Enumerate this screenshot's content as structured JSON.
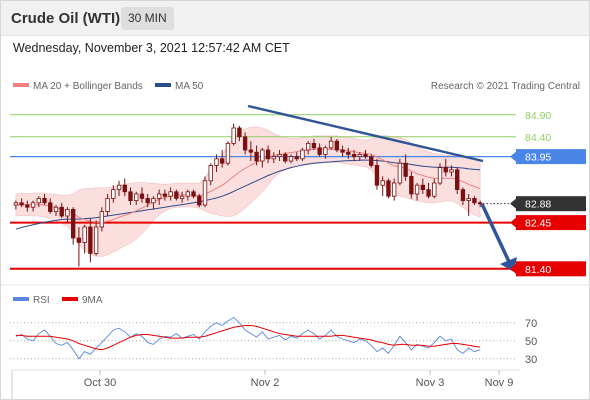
{
  "header": {
    "title": "Crude Oil (WTI)",
    "timeframe": "30 MIN",
    "datetime": "Wednesday, November 3, 2021 12:57:42 AM CET"
  },
  "legend": {
    "ma20_label": "MA 20 + Bollinger Bands",
    "ma50_label": "MA 50",
    "credit": "Research © 2021 Trading Central",
    "rsi_label": "RSI",
    "rsi_ma_label": "9MA"
  },
  "colors": {
    "ma20": "#f08080",
    "ma50": "#2c4a8c",
    "bollinger_fill": "#fbdcdc",
    "resistance": "#8fcf62",
    "pivot": "#4a86e8",
    "support": "#e60000",
    "trendline": "#2f5597",
    "candle": "#7a1010",
    "rsi": "#5b87e0",
    "rsi_ma": "#e60000"
  },
  "chart_data": [
    {
      "type": "candlestick",
      "title": "Crude Oil (WTI)",
      "x_tick_labels": [
        "Oct 30",
        "Nov 2",
        "Nov 3",
        "Nov 9"
      ],
      "ylim": [
        81.1,
        85.35
      ],
      "price_levels": [
        {
          "label": "84.90",
          "value": 84.9,
          "kind": "resistance"
        },
        {
          "label": "84.40",
          "value": 84.4,
          "kind": "resistance"
        },
        {
          "label": "83.95",
          "value": 83.95,
          "kind": "pivot"
        },
        {
          "label": "82.88",
          "value": 82.88,
          "kind": "last"
        },
        {
          "label": "82.45",
          "value": 82.45,
          "kind": "support"
        },
        {
          "label": "81.40",
          "value": 81.4,
          "kind": "support"
        }
      ],
      "candles": [
        [
          82.85,
          82.95,
          82.75,
          82.9
        ],
        [
          82.9,
          83.0,
          82.8,
          82.85
        ],
        [
          82.85,
          82.95,
          82.7,
          82.8
        ],
        [
          82.8,
          82.95,
          82.7,
          82.9
        ],
        [
          82.9,
          83.05,
          82.8,
          83.0
        ],
        [
          83.0,
          83.1,
          82.85,
          82.9
        ],
        [
          82.9,
          83.0,
          82.65,
          82.7
        ],
        [
          82.7,
          82.85,
          82.6,
          82.8
        ],
        [
          82.8,
          82.9,
          82.55,
          82.6
        ],
        [
          82.6,
          82.8,
          82.45,
          82.75
        ],
        [
          82.75,
          82.8,
          81.95,
          82.1
        ],
        [
          82.1,
          82.35,
          81.45,
          82.0
        ],
        [
          82.0,
          82.4,
          81.75,
          82.35
        ],
        [
          82.35,
          82.55,
          81.55,
          81.75
        ],
        [
          81.75,
          82.5,
          81.7,
          82.35
        ],
        [
          82.35,
          82.8,
          82.25,
          82.7
        ],
        [
          82.7,
          83.1,
          82.6,
          83.0
        ],
        [
          83.0,
          83.3,
          82.9,
          83.2
        ],
        [
          83.2,
          83.4,
          83.05,
          83.3
        ],
        [
          83.3,
          83.45,
          83.05,
          83.15
        ],
        [
          83.15,
          83.25,
          82.85,
          82.95
        ],
        [
          82.95,
          83.15,
          82.85,
          83.1
        ],
        [
          83.1,
          83.25,
          82.9,
          83.0
        ],
        [
          83.0,
          83.1,
          82.8,
          82.9
        ],
        [
          82.9,
          83.05,
          82.75,
          83.0
        ],
        [
          83.0,
          83.2,
          82.85,
          83.1
        ],
        [
          83.1,
          83.2,
          82.95,
          83.05
        ],
        [
          83.05,
          83.25,
          82.95,
          83.15
        ],
        [
          83.15,
          83.2,
          82.95,
          83.0
        ],
        [
          83.0,
          83.15,
          82.9,
          83.05
        ],
        [
          83.05,
          83.2,
          82.95,
          83.15
        ],
        [
          83.15,
          83.2,
          83.0,
          83.05
        ],
        [
          83.05,
          83.1,
          82.8,
          82.85
        ],
        [
          82.85,
          83.5,
          82.8,
          83.4
        ],
        [
          83.4,
          83.8,
          83.3,
          83.75
        ],
        [
          83.75,
          84.0,
          83.6,
          83.9
        ],
        [
          83.9,
          84.1,
          83.7,
          83.8
        ],
        [
          83.8,
          84.3,
          83.75,
          84.25
        ],
        [
          84.25,
          84.7,
          84.2,
          84.6
        ],
        [
          84.6,
          84.65,
          84.3,
          84.4
        ],
        [
          84.4,
          84.5,
          84.0,
          84.1
        ],
        [
          84.1,
          84.3,
          83.85,
          84.05
        ],
        [
          84.05,
          84.2,
          83.75,
          83.85
        ],
        [
          83.85,
          84.15,
          83.7,
          84.1
        ],
        [
          84.1,
          84.2,
          83.8,
          83.9
        ],
        [
          83.9,
          84.05,
          83.8,
          83.95
        ],
        [
          83.95,
          84.1,
          83.85,
          84.0
        ],
        [
          84.0,
          84.05,
          83.8,
          83.85
        ],
        [
          83.85,
          84.0,
          83.8,
          83.95
        ],
        [
          83.95,
          84.05,
          83.85,
          83.9
        ],
        [
          83.9,
          84.15,
          83.85,
          84.1
        ],
        [
          84.1,
          84.3,
          84.0,
          84.25
        ],
        [
          84.25,
          84.35,
          84.1,
          84.15
        ],
        [
          84.15,
          84.25,
          83.95,
          84.0
        ],
        [
          84.0,
          84.2,
          83.9,
          84.15
        ],
        [
          84.15,
          84.4,
          84.1,
          84.3
        ],
        [
          84.3,
          84.35,
          84.05,
          84.1
        ],
        [
          84.1,
          84.2,
          83.95,
          84.05
        ],
        [
          84.05,
          84.15,
          83.9,
          84.0
        ],
        [
          84.0,
          84.1,
          83.85,
          83.95
        ],
        [
          83.95,
          84.05,
          83.85,
          84.0
        ],
        [
          84.0,
          84.1,
          83.9,
          83.95
        ],
        [
          83.95,
          84.0,
          83.7,
          83.75
        ],
        [
          83.75,
          83.9,
          83.2,
          83.3
        ],
        [
          83.3,
          83.5,
          83.05,
          83.4
        ],
        [
          83.4,
          83.45,
          83.0,
          83.05
        ],
        [
          83.05,
          83.45,
          82.95,
          83.35
        ],
        [
          83.35,
          83.9,
          83.3,
          83.8
        ],
        [
          83.8,
          84.0,
          83.4,
          83.5
        ],
        [
          83.5,
          83.6,
          83.0,
          83.1
        ],
        [
          83.1,
          83.35,
          82.95,
          83.3
        ],
        [
          83.3,
          83.45,
          83.1,
          83.2
        ],
        [
          83.2,
          83.35,
          83.0,
          83.05
        ],
        [
          83.05,
          83.45,
          83.0,
          83.35
        ],
        [
          83.35,
          83.8,
          83.3,
          83.7
        ],
        [
          83.7,
          83.9,
          83.5,
          83.6
        ],
        [
          83.6,
          83.75,
          83.5,
          83.65
        ],
        [
          83.65,
          83.7,
          83.1,
          83.2
        ],
        [
          83.2,
          83.25,
          82.85,
          82.95
        ],
        [
          82.95,
          83.1,
          82.6,
          83.0
        ],
        [
          83.0,
          83.05,
          82.85,
          82.9
        ],
        [
          82.9,
          82.95,
          82.8,
          82.88
        ]
      ],
      "ma20": [
        82.85,
        82.86,
        82.86,
        82.86,
        82.86,
        82.85,
        82.82,
        82.79,
        82.75,
        82.72,
        82.65,
        82.57,
        82.52,
        82.48,
        82.46,
        82.46,
        82.48,
        82.52,
        82.57,
        82.62,
        82.66,
        82.72,
        82.78,
        82.85,
        82.92,
        82.98,
        83.02,
        83.05,
        83.07,
        83.08,
        83.08,
        83.07,
        83.06,
        83.1,
        83.16,
        83.23,
        83.3,
        83.39,
        83.5,
        83.6,
        83.68,
        83.76,
        83.82,
        83.88,
        83.93,
        83.97,
        84.0,
        84.02,
        84.04,
        84.06,
        84.08,
        84.1,
        84.12,
        84.12,
        84.12,
        84.12,
        84.12,
        84.1,
        84.08,
        84.06,
        84.04,
        84.02,
        84.0,
        83.94,
        83.88,
        83.8,
        83.74,
        83.72,
        83.68,
        83.62,
        83.56,
        83.52,
        83.48,
        83.46,
        83.46,
        83.46,
        83.46,
        83.43,
        83.38,
        83.32,
        83.27,
        83.22
      ],
      "ma50": [
        82.3,
        82.34,
        82.37,
        82.4,
        82.43,
        82.46,
        82.48,
        82.5,
        82.52,
        82.53,
        82.53,
        82.53,
        82.54,
        82.55,
        82.56,
        82.58,
        82.6,
        82.62,
        82.64,
        82.66,
        82.68,
        82.7,
        82.72,
        82.74,
        82.76,
        82.78,
        82.8,
        82.82,
        82.84,
        82.86,
        82.88,
        82.9,
        82.92,
        82.95,
        82.98,
        83.01,
        83.05,
        83.1,
        83.16,
        83.22,
        83.28,
        83.34,
        83.4,
        83.46,
        83.52,
        83.57,
        83.62,
        83.66,
        83.7,
        83.73,
        83.76,
        83.78,
        83.8,
        83.81,
        83.82,
        83.83,
        83.84,
        83.85,
        83.86,
        83.86,
        83.87,
        83.87,
        83.87,
        83.86,
        83.85,
        83.83,
        83.81,
        83.8,
        83.79,
        83.77,
        83.75,
        83.73,
        83.72,
        83.71,
        83.71,
        83.71,
        83.71,
        83.7,
        83.69,
        83.67,
        83.66,
        83.65
      ],
      "boll_width": [
        0.25,
        0.25,
        0.25,
        0.26,
        0.26,
        0.27,
        0.28,
        0.3,
        0.32,
        0.35,
        0.45,
        0.62,
        0.7,
        0.75,
        0.78,
        0.78,
        0.76,
        0.74,
        0.72,
        0.7,
        0.68,
        0.64,
        0.58,
        0.5,
        0.42,
        0.35,
        0.3,
        0.28,
        0.27,
        0.27,
        0.27,
        0.27,
        0.28,
        0.38,
        0.5,
        0.6,
        0.7,
        0.8,
        0.9,
        0.92,
        0.9,
        0.86,
        0.8,
        0.72,
        0.62,
        0.5,
        0.42,
        0.36,
        0.32,
        0.3,
        0.3,
        0.3,
        0.3,
        0.3,
        0.3,
        0.3,
        0.3,
        0.3,
        0.3,
        0.3,
        0.3,
        0.3,
        0.35,
        0.45,
        0.55,
        0.62,
        0.65,
        0.66,
        0.66,
        0.64,
        0.62,
        0.6,
        0.58,
        0.56,
        0.54,
        0.52,
        0.52,
        0.54,
        0.58,
        0.62,
        0.64,
        0.65
      ]
    },
    {
      "type": "line",
      "title": "RSI",
      "series": [
        {
          "name": "RSI",
          "values": [
            55,
            57,
            52,
            50,
            58,
            62,
            55,
            47,
            45,
            48,
            40,
            30,
            38,
            35,
            42,
            48,
            55,
            62,
            64,
            60,
            54,
            58,
            55,
            48,
            46,
            52,
            55,
            54,
            58,
            53,
            55,
            57,
            52,
            60,
            66,
            70,
            67,
            72,
            76,
            70,
            62,
            58,
            54,
            60,
            52,
            54,
            56,
            51,
            55,
            53,
            58,
            62,
            58,
            52,
            56,
            62,
            55,
            52,
            50,
            48,
            52,
            50,
            45,
            38,
            42,
            36,
            45,
            55,
            48,
            40,
            46,
            44,
            42,
            48,
            55,
            50,
            52,
            40,
            36,
            42,
            38,
            40
          ]
        },
        {
          "name": "9MA",
          "values": [
            56,
            56,
            55,
            55,
            55,
            55,
            55,
            54,
            53,
            52,
            50,
            47,
            45,
            43,
            41,
            40,
            42,
            45,
            48,
            51,
            54,
            56,
            57,
            57,
            56,
            55,
            54,
            53,
            53,
            53,
            54,
            54,
            54,
            55,
            57,
            59,
            61,
            63,
            65,
            66,
            67,
            67,
            66,
            64,
            62,
            60,
            58,
            57,
            56,
            55,
            55,
            55,
            55,
            55,
            55,
            55,
            56,
            56,
            55,
            54,
            53,
            52,
            51,
            49,
            48,
            46,
            45,
            46,
            46,
            45,
            45,
            45,
            44,
            44,
            45,
            46,
            47,
            47,
            46,
            45,
            44,
            43
          ]
        }
      ],
      "y_ticks": [
        70,
        50,
        30
      ],
      "ylim": [
        22,
        82
      ]
    }
  ]
}
